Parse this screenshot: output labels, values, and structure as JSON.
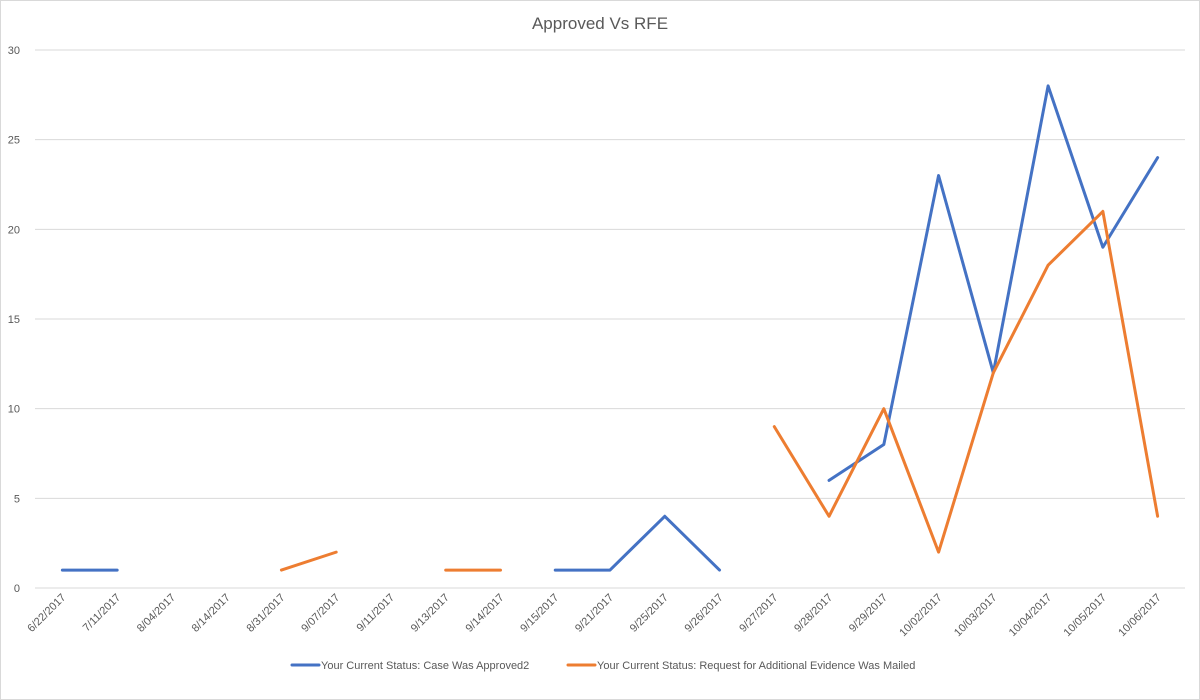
{
  "chart_data": {
    "type": "line",
    "title": "Approved Vs RFE",
    "xlabel": "",
    "ylabel": "",
    "ylim": [
      0,
      30
    ],
    "yticks": [
      0,
      5,
      10,
      15,
      20,
      25,
      30
    ],
    "grid": true,
    "legend_position": "bottom",
    "categories": [
      "6/22/2017",
      "7/11/2017",
      "8/04/2017",
      "8/14/2017",
      "8/31/2017",
      "9/07/2017",
      "9/11/2017",
      "9/13/2017",
      "9/14/2017",
      "9/15/2017",
      "9/21/2017",
      "9/25/2017",
      "9/26/2017",
      "9/27/2017",
      "9/28/2017",
      "9/29/2017",
      "10/02/2017",
      "10/03/2017",
      "10/04/2017",
      "10/05/2017",
      "10/06/2017"
    ],
    "series": [
      {
        "name": "Your Current Status: Case Was Approved2",
        "color": "#4472c4",
        "values": [
          1,
          1,
          null,
          null,
          null,
          null,
          null,
          null,
          null,
          1,
          1,
          4,
          1,
          null,
          6,
          8,
          23,
          12,
          28,
          19,
          24
        ]
      },
      {
        "name": "Your Current Status: Request for Additional Evidence Was Mailed",
        "color": "#ed7d31",
        "values": [
          null,
          null,
          null,
          null,
          1,
          2,
          null,
          1,
          1,
          null,
          null,
          null,
          null,
          9,
          4,
          10,
          2,
          12,
          18,
          21,
          4
        ]
      }
    ]
  }
}
